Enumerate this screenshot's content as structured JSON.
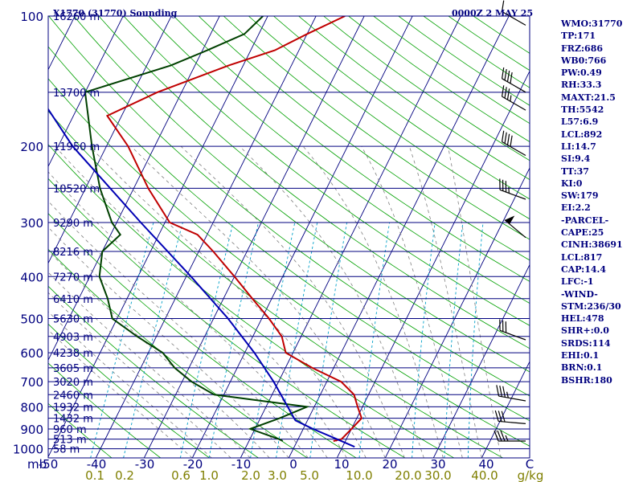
{
  "header": {
    "station": "X1770 (31770) Sounding",
    "datetime": "0000Z  2 MAY 25"
  },
  "stats": [
    "WMO:31770",
    "TP:171",
    "FRZ:686",
    "WB0:766",
    "PW:0.49",
    "RH:33.3",
    "MAXT:21.5",
    "TH:5542",
    "L57:6.9",
    "LCL:892",
    "LI:14.7",
    "SI:9.4",
    "TT:37",
    "KI:0",
    "SW:179",
    "EI:2.2",
    "-PARCEL-",
    "CAPE:25",
    "CINH:38691",
    "LCL:817",
    "CAP:14.4",
    "LFC:-1",
    "-WIND-",
    "STM:236/30",
    "HEL:478",
    "SHR+:0.0",
    "SRDS:114",
    "EHI:0.1",
    "BRN:0.1",
    "BSHR:180"
  ],
  "chart_data": {
    "type": "line",
    "title": "X1770 (31770) Sounding",
    "xlabel": "C",
    "ylabel": "mb",
    "x_ticks": [
      "-50",
      "-40",
      "-30",
      "-20",
      "-10",
      "0",
      "10",
      "20",
      "30",
      "40",
      "C"
    ],
    "mixing_ratio_ticks": [
      "0.1",
      "0.2",
      "0.6",
      "1.0",
      "2.0",
      "3.0",
      "5.0",
      "10.0",
      "20.0",
      "30.0",
      "40.0",
      "g/kg"
    ],
    "pressure_ticks": [
      {
        "p": 100,
        "label": "100",
        "height": "16260 m"
      },
      {
        "p": 150,
        "label": "",
        "height": "13700 m"
      },
      {
        "p": 200,
        "label": "200",
        "height": "11950 m"
      },
      {
        "p": 250,
        "label": "",
        "height": "10520 m"
      },
      {
        "p": 300,
        "label": "300",
        "height": "9290 m"
      },
      {
        "p": 350,
        "label": "",
        "height": "8216 m"
      },
      {
        "p": 400,
        "label": "400",
        "height": "7270 m"
      },
      {
        "p": 450,
        "label": "",
        "height": "6410 m"
      },
      {
        "p": 500,
        "label": "500",
        "height": "5630 m"
      },
      {
        "p": 550,
        "label": "",
        "height": "4903 m"
      },
      {
        "p": 600,
        "label": "600",
        "height": "4238 m"
      },
      {
        "p": 650,
        "label": "",
        "height": "3605 m"
      },
      {
        "p": 700,
        "label": "700",
        "height": "3020 m"
      },
      {
        "p": 750,
        "label": "",
        "height": "2460 m"
      },
      {
        "p": 800,
        "label": "800",
        "height": "1932 m"
      },
      {
        "p": 850,
        "label": "",
        "height": "1432 m"
      },
      {
        "p": 900,
        "label": "900",
        "height": "960 m"
      },
      {
        "p": 950,
        "label": "",
        "height": "513 m"
      },
      {
        "p": 1000,
        "label": "1000",
        "height": "58 m"
      }
    ],
    "series": [
      {
        "role": "temperature",
        "color": "#c00000",
        "points": [
          [
            960,
            7.5
          ],
          [
            950,
            9
          ],
          [
            900,
            10
          ],
          [
            850,
            11
          ],
          [
            800,
            9
          ],
          [
            750,
            7
          ],
          [
            700,
            3
          ],
          [
            650,
            -4.5
          ],
          [
            600,
            -11.5
          ],
          [
            550,
            -14
          ],
          [
            500,
            -18.5
          ],
          [
            450,
            -24
          ],
          [
            400,
            -30
          ],
          [
            350,
            -37
          ],
          [
            320,
            -42
          ],
          [
            300,
            -49
          ],
          [
            250,
            -57
          ],
          [
            200,
            -65.5
          ],
          [
            170,
            -73
          ],
          [
            150,
            -65
          ],
          [
            130,
            -53
          ],
          [
            120,
            -45
          ],
          [
            110,
            -40
          ],
          [
            100,
            -34
          ]
        ]
      },
      {
        "role": "dewpoint",
        "color": "#004000",
        "points": [
          [
            960,
            -3
          ],
          [
            950,
            -4
          ],
          [
            900,
            -11
          ],
          [
            850,
            -6
          ],
          [
            800,
            -1.5
          ],
          [
            750,
            -22
          ],
          [
            700,
            -28
          ],
          [
            650,
            -33
          ],
          [
            600,
            -37
          ],
          [
            550,
            -44
          ],
          [
            500,
            -51
          ],
          [
            450,
            -54
          ],
          [
            400,
            -58
          ],
          [
            350,
            -60
          ],
          [
            320,
            -58
          ],
          [
            300,
            -61
          ],
          [
            250,
            -67
          ],
          [
            200,
            -73
          ],
          [
            150,
            -80
          ],
          [
            130,
            -65
          ],
          [
            120,
            -59
          ],
          [
            110,
            -53
          ],
          [
            100,
            -51
          ]
        ]
      },
      {
        "role": "parcel",
        "color": "#0000b4",
        "points": [
          [
            990,
            12.5
          ],
          [
            950,
            8
          ],
          [
            900,
            2
          ],
          [
            860,
            -2.5
          ],
          [
            850,
            -3
          ],
          [
            800,
            -5.5
          ],
          [
            700,
            -11
          ],
          [
            600,
            -18
          ],
          [
            500,
            -27
          ],
          [
            400,
            -39
          ],
          [
            300,
            -55
          ],
          [
            200,
            -77
          ],
          [
            150,
            -90
          ],
          [
            100,
            -110
          ]
        ]
      }
    ],
    "wind_barbs": [
      {
        "p": 105,
        "direction": 300,
        "speed_kt": 10
      },
      {
        "p": 150,
        "direction": 300,
        "speed_kt": 40
      },
      {
        "p": 165,
        "direction": 300,
        "speed_kt": 35
      },
      {
        "p": 210,
        "direction": 300,
        "speed_kt": 40
      },
      {
        "p": 265,
        "direction": 290,
        "speed_kt": 35
      },
      {
        "p": 325,
        "direction": 310,
        "speed_kt": 50
      },
      {
        "p": 560,
        "direction": 290,
        "speed_kt": 30
      },
      {
        "p": 775,
        "direction": 280,
        "speed_kt": 35
      },
      {
        "p": 875,
        "direction": 275,
        "speed_kt": 30
      },
      {
        "p": 960,
        "direction": 270,
        "speed_kt": 35
      }
    ],
    "colors": {
      "isobar": "#00007f",
      "skewed_isotherm": "#00007f",
      "dry_adiabat": "#00a000",
      "moist_adiabat": "#7f7f7f",
      "mixing_ratio": "#00a0c8",
      "labels": "#00007f",
      "mixing_ratio_labels": "#7f7f00"
    }
  }
}
